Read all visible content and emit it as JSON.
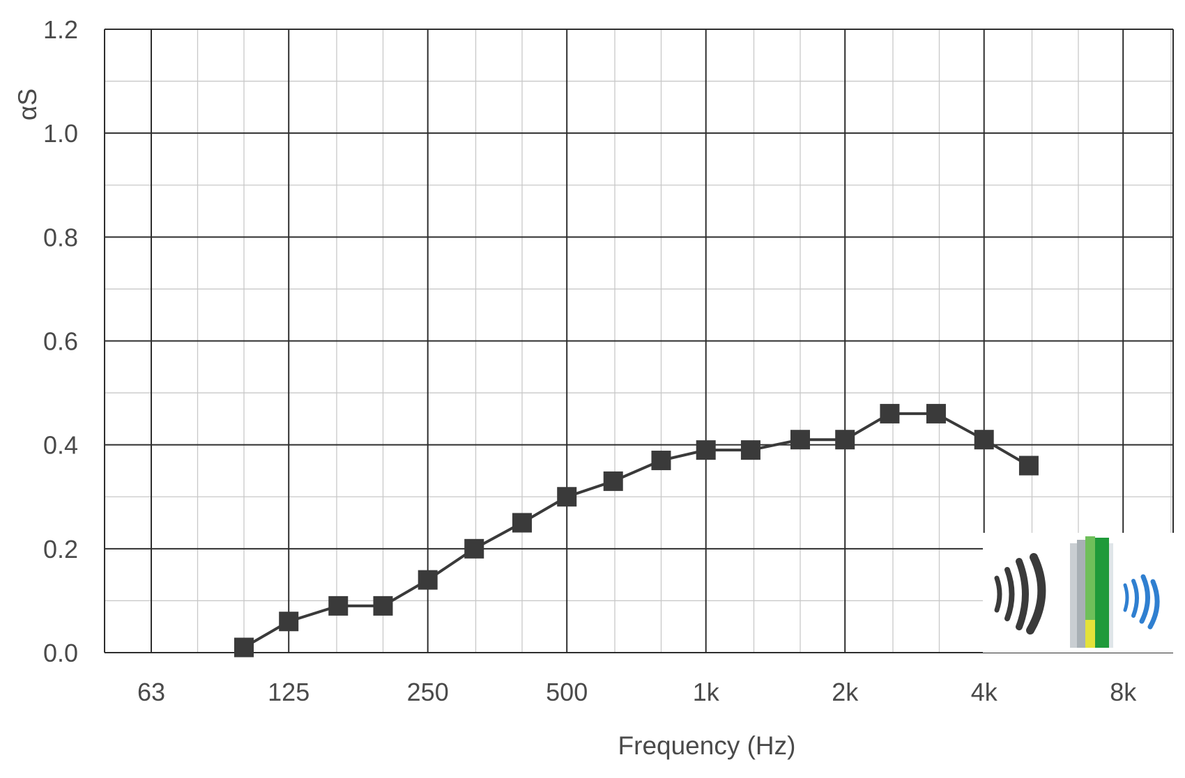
{
  "chart_data": {
    "type": "line",
    "xlabel": "Frequency (Hz)",
    "ylabel": "αS",
    "x_scale": "log2 (1/3-octave bands)",
    "x_tick_labels": [
      "63",
      "125",
      "250",
      "500",
      "1k",
      "2k",
      "4k",
      "8k"
    ],
    "x_tick_values": [
      63,
      125,
      250,
      500,
      1000,
      2000,
      4000,
      8000
    ],
    "ylim": [
      0,
      1.2
    ],
    "y_tick_labels": [
      "0.0",
      "0.2",
      "0.4",
      "0.6",
      "0.8",
      "1.0",
      "1.2"
    ],
    "y_tick_values": [
      0,
      0.2,
      0.4,
      0.6,
      0.8,
      1.0,
      1.2
    ],
    "grid": true,
    "series": [
      {
        "x": [
          100,
          125,
          160,
          200,
          250,
          315,
          400,
          500,
          630,
          800,
          1000,
          1250,
          1600,
          2000,
          2500,
          3150,
          4000,
          5000
        ],
        "y": [
          0.01,
          0.06,
          0.09,
          0.09,
          0.14,
          0.2,
          0.25,
          0.3,
          0.33,
          0.37,
          0.39,
          0.39,
          0.41,
          0.41,
          0.46,
          0.46,
          0.41,
          0.36
        ],
        "color": "#3a3a3a",
        "marker": "square"
      }
    ]
  },
  "logo": {
    "icon": "sound-absorption-panel-icon"
  }
}
